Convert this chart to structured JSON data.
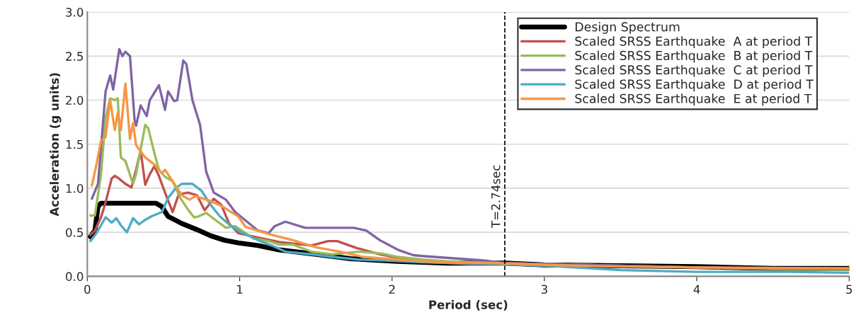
{
  "chart_data": {
    "type": "line",
    "xlabel": "Period (sec)",
    "ylabel": "Acceleration (g units)",
    "xlim": [
      0,
      5
    ],
    "xticks": [
      0,
      1,
      2,
      3,
      4,
      5
    ],
    "ylim": [
      0,
      3
    ],
    "yticks": [
      {
        "value": 0,
        "label": "0.0"
      },
      {
        "value": 0.5,
        "label": "0.5"
      },
      {
        "value": 1,
        "label": "1.0"
      },
      {
        "value": 1.5,
        "label": "1.5"
      },
      {
        "value": 2,
        "label": "2.0"
      },
      {
        "value": 2.5,
        "label": "2.5"
      },
      {
        "value": 3,
        "label": "3.0"
      }
    ],
    "grid": "y",
    "legend": "top right",
    "ref_lines": [
      {
        "axis": "x",
        "value": 2.74,
        "label": "T=2.74sec",
        "color": "#000000",
        "line_style": "dashed"
      }
    ],
    "series": [
      {
        "name": "Design Spectrum",
        "color": "#000000",
        "x": [
          0.02,
          0.05,
          0.07,
          0.09,
          0.45,
          0.49,
          0.53,
          0.62,
          0.72,
          0.81,
          0.9,
          0.99,
          1.12,
          1.26,
          1.5,
          1.73,
          2.04,
          2.36,
          2.74,
          3.0,
          3.5,
          4.0,
          4.5,
          5.0
        ],
        "values": [
          0.45,
          0.52,
          0.79,
          0.83,
          0.83,
          0.79,
          0.68,
          0.6,
          0.53,
          0.46,
          0.41,
          0.38,
          0.35,
          0.3,
          0.25,
          0.2,
          0.17,
          0.15,
          0.15,
          0.13,
          0.12,
          0.11,
          0.09,
          0.09
        ]
      },
      {
        "name": "Scaled SRSS Earthquake  A at period T",
        "color": "#c0504d",
        "x": [
          0.02,
          0.05,
          0.09,
          0.12,
          0.16,
          0.18,
          0.2,
          0.25,
          0.29,
          0.32,
          0.35,
          0.38,
          0.41,
          0.44,
          0.47,
          0.51,
          0.56,
          0.6,
          0.66,
          0.72,
          0.77,
          0.83,
          0.88,
          0.93,
          0.99,
          1.12,
          1.26,
          1.47,
          1.58,
          1.64,
          1.77,
          1.92,
          2.17,
          2.5,
          3.0,
          3.5,
          4.0,
          5.0
        ],
        "values": [
          0.47,
          0.52,
          0.67,
          0.84,
          1.11,
          1.14,
          1.12,
          1.05,
          1.01,
          1.21,
          1.43,
          1.04,
          1.16,
          1.25,
          1.14,
          0.95,
          0.73,
          0.93,
          0.95,
          0.92,
          0.75,
          0.88,
          0.81,
          0.6,
          0.49,
          0.44,
          0.39,
          0.35,
          0.4,
          0.4,
          0.32,
          0.25,
          0.17,
          0.14,
          0.14,
          0.12,
          0.1,
          0.09
        ]
      },
      {
        "name": "Scaled SRSS Earthquake  B at period T",
        "color": "#9bbb59",
        "x": [
          0.02,
          0.05,
          0.09,
          0.12,
          0.15,
          0.18,
          0.2,
          0.22,
          0.25,
          0.3,
          0.32,
          0.38,
          0.4,
          0.44,
          0.47,
          0.51,
          0.56,
          0.61,
          0.66,
          0.7,
          0.73,
          0.78,
          0.84,
          0.91,
          0.97,
          1.09,
          1.19,
          1.26,
          1.35,
          1.47,
          1.61,
          1.78,
          1.93,
          2.04,
          2.2,
          2.36,
          2.7,
          3.0,
          3.5,
          4.0,
          4.5,
          5.0
        ],
        "values": [
          0.69,
          0.69,
          1.16,
          1.8,
          2.02,
          2.0,
          2.02,
          1.35,
          1.31,
          1.05,
          1.16,
          1.72,
          1.68,
          1.4,
          1.21,
          1.13,
          1.08,
          0.89,
          0.76,
          0.67,
          0.68,
          0.72,
          0.64,
          0.55,
          0.57,
          0.43,
          0.4,
          0.36,
          0.36,
          0.28,
          0.25,
          0.28,
          0.26,
          0.22,
          0.19,
          0.17,
          0.15,
          0.14,
          0.12,
          0.1,
          0.08,
          0.07
        ]
      },
      {
        "name": "Scaled SRSS Earthquake  C at period T",
        "color": "#8064a2",
        "x": [
          0.03,
          0.07,
          0.12,
          0.15,
          0.17,
          0.21,
          0.23,
          0.25,
          0.28,
          0.31,
          0.32,
          0.35,
          0.39,
          0.41,
          0.47,
          0.51,
          0.53,
          0.57,
          0.59,
          0.63,
          0.65,
          0.69,
          0.74,
          0.78,
          0.83,
          0.91,
          0.97,
          1.12,
          1.19,
          1.23,
          1.3,
          1.43,
          1.6,
          1.75,
          1.83,
          1.92,
          2.04,
          2.14,
          2.2,
          2.36,
          2.6,
          2.74,
          3.0,
          3.5,
          4.0,
          5.0
        ],
        "values": [
          0.88,
          1.05,
          2.1,
          2.28,
          2.12,
          2.58,
          2.5,
          2.55,
          2.5,
          1.78,
          1.71,
          1.94,
          1.82,
          2.0,
          2.17,
          1.89,
          2.1,
          1.99,
          2.0,
          2.45,
          2.41,
          2.0,
          1.72,
          1.19,
          0.95,
          0.87,
          0.73,
          0.52,
          0.49,
          0.57,
          0.62,
          0.55,
          0.55,
          0.55,
          0.52,
          0.41,
          0.3,
          0.24,
          0.23,
          0.21,
          0.18,
          0.15,
          0.14,
          0.12,
          0.1,
          0.08
        ]
      },
      {
        "name": "Scaled SRSS Earthquake  D at period T",
        "color": "#4bacc6",
        "x": [
          0.02,
          0.06,
          0.12,
          0.16,
          0.19,
          0.22,
          0.26,
          0.3,
          0.34,
          0.37,
          0.42,
          0.49,
          0.53,
          0.58,
          0.62,
          0.69,
          0.75,
          0.81,
          0.87,
          0.93,
          0.99,
          1.12,
          1.21,
          1.3,
          1.47,
          1.61,
          1.78,
          1.96,
          2.2,
          2.7,
          3.0,
          3.3,
          3.5,
          4.0,
          4.6,
          5.0
        ],
        "values": [
          0.4,
          0.49,
          0.67,
          0.61,
          0.66,
          0.58,
          0.5,
          0.66,
          0.59,
          0.63,
          0.68,
          0.73,
          0.89,
          1.0,
          1.05,
          1.05,
          0.97,
          0.81,
          0.68,
          0.59,
          0.52,
          0.41,
          0.35,
          0.28,
          0.25,
          0.22,
          0.19,
          0.18,
          0.16,
          0.14,
          0.12,
          0.09,
          0.07,
          0.05,
          0.05,
          0.04
        ]
      },
      {
        "name": "Scaled SRSS Earthquake  E at period T",
        "color": "#f79646",
        "x": [
          0.03,
          0.06,
          0.09,
          0.12,
          0.15,
          0.18,
          0.2,
          0.22,
          0.25,
          0.28,
          0.3,
          0.32,
          0.38,
          0.44,
          0.49,
          0.51,
          0.56,
          0.62,
          0.67,
          0.71,
          0.8,
          0.89,
          0.99,
          1.04,
          1.19,
          1.35,
          1.5,
          1.66,
          1.81,
          1.96,
          2.2,
          2.36,
          2.7,
          3.0,
          3.5,
          4.0,
          5.0
        ],
        "values": [
          1.03,
          1.27,
          1.54,
          1.58,
          2.0,
          1.66,
          1.86,
          1.66,
          2.19,
          1.56,
          1.74,
          1.49,
          1.35,
          1.27,
          1.17,
          1.21,
          1.08,
          0.92,
          0.87,
          0.91,
          0.86,
          0.79,
          0.68,
          0.56,
          0.48,
          0.41,
          0.33,
          0.28,
          0.22,
          0.2,
          0.17,
          0.16,
          0.15,
          0.13,
          0.11,
          0.1,
          0.09
        ]
      }
    ]
  }
}
